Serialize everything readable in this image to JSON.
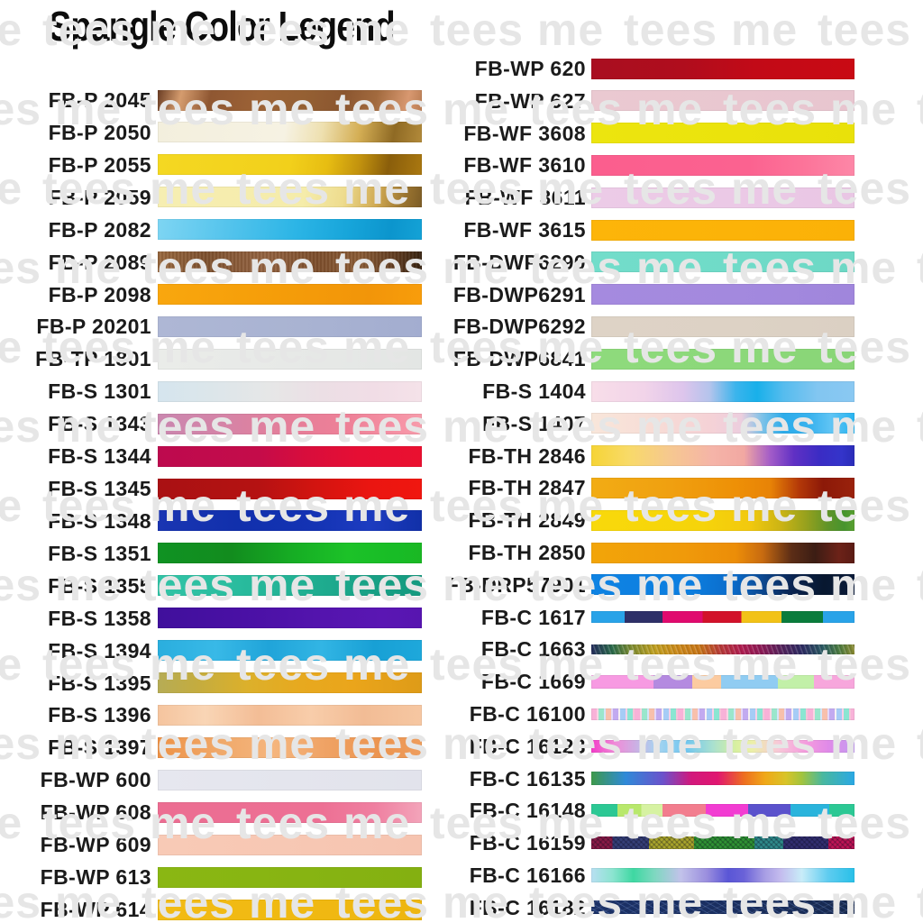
{
  "title": "Spangle Color Legend",
  "watermark": {
    "text": "tees me"
  },
  "legend": {
    "left": [
      {
        "code": "FB-P 2045",
        "swatch": "linear-gradient(102deg, #6a3d24 0%, #d59c6e 9%, #8f5732 20%, #9c6236 38%, #956033 55%, #8b5630 70%, #a26a3e 82%, #d89870 94%, #b97c52 100%)"
      },
      {
        "code": "FB-P 2050",
        "swatch": "linear-gradient(100deg, #f3efdd 0%, #f6f2e3 48%, #eee0b0 62%, #d4ae54 76%, #8f6a24 89%, #b28a3a 100%)"
      },
      {
        "code": "FB-P 2055",
        "swatch": "linear-gradient(100deg, #f4d822 0%, #f2d01b 50%, #e7bd12 64%, #c2920e 76%, #8a5e0b 87%, #aa7810 100%)"
      },
      {
        "code": "FB-P 2059",
        "swatch": "linear-gradient(100deg, #f6eeb2 0%, #f5ecaa 55%, #eedc8e 70%, #cfa851 83%, #9a7430 93%, #7c5c26 100%)"
      },
      {
        "code": "FB-P 2082",
        "swatch": "linear-gradient(97deg, #7ed5f3 0%, #52c3ec 28%, #2cb5e6 52%, #17a5da 72%, #0c95cd 88%, #14a2d6 100%)"
      },
      {
        "code": "FB-P 2089",
        "swatch": "repeating-linear-gradient(90deg, rgba(60,30,10,0.10) 0 2px, rgba(255,255,255,0.05) 2px 4px), linear-gradient(95deg, #9a6a40 0%, #7e5230 18%, #946442 40%, #7d4f2d 60%, #8a5c36 76%, #5e3b20 90%, #32200f 100%)"
      },
      {
        "code": "FB-P 2098",
        "swatch": "linear-gradient(95deg, #f9a70e 0%, #f59d09 45%, #f29509 80%, #f89d0b 100%)"
      },
      {
        "code": "FB-P 20201",
        "swatch": "linear-gradient(92deg, #aeb7d5 0%, #a9b3d2 55%, #a3add0 100%)"
      },
      {
        "code": "FB-TP 1801",
        "swatch": "linear-gradient(92deg, #eaece9 0%, #e7e9e7 50%, #e3e6e4 100%)"
      },
      {
        "code": "FB-S 1301",
        "swatch": "linear-gradient(90deg, #d5e5ee 0%, #dde6ea 22%, #e6e7e7 42%, #ecdfe5 62%, #f1dde6 82%, #f5e2e9 100%)"
      },
      {
        "code": "FB-S 1343",
        "swatch": "linear-gradient(90deg, #ca87af 0%, #d584a7 25%, #e57e99 50%, #ee8097 72%, #f591a4 90%, #f79cab 100%)"
      },
      {
        "code": "FB-S 1344",
        "swatch": "linear-gradient(90deg, #bd0a4e 0%, #c40c4a 38%, #d80d3c 56%, #e60e34 76%, #ea1030 100%)"
      },
      {
        "code": "FB-S 1345",
        "swatch": "linear-gradient(90deg, #a91113 0%, #b51212 38%, #d31410 60%, #ea1511 80%, #f01710 100%)"
      },
      {
        "code": "FB-S 1348",
        "swatch": "linear-gradient(90deg, #1a35b2 0%, #1130ac 30%, #1433b4 60%, #1d3cc0 80%, #1130a8 100%)"
      },
      {
        "code": "FB-S 1351",
        "swatch": "linear-gradient(90deg, #109223 0%, #128c1e 28%, #16ae24 52%, #1cc228 72%, #18bc26 90%, #1ab824 100%)"
      },
      {
        "code": "FB-S 1355",
        "swatch": "linear-gradient(90deg, #32c3a6 0%, #2abd9f 28%, #20ae91 58%, #18a085 82%, #159a7f 100%)"
      },
      {
        "code": "FB-S 1358",
        "swatch": "linear-gradient(90deg, #40109c 0%, #4910a4 30%, #5314ad 60%, #5a16b3 85%, #5715b0 100%)"
      },
      {
        "code": "FB-S 1394",
        "swatch": "linear-gradient(90deg, #2aaede 0%, #38b9e7 22%, #20a4d9 42%, #32b5e4 62%, #18a0d5 82%, #1ea8db 100%)"
      },
      {
        "code": "FB-S 1395",
        "swatch": "linear-gradient(90deg, #b6ac56 0%, #c3ac40 14%, #dcb02b 34%, #e7a91f 54%, #eaa51b 74%, #de9b18 100%)"
      },
      {
        "code": "FB-S 1396",
        "swatch": "linear-gradient(90deg, #f5c49e 0%, #f9d5b5 18%, #f3bd96 38%, #f8cdaa 58%, #f2bc95 78%, #f6c7a2 100%)"
      },
      {
        "code": "FB-S 1397",
        "swatch": "linear-gradient(90deg, #ee9246 0%, #f0a96a 24%, #f5b57d 44%, #efa264 64%, #ec944f 84%, #ee9d5d 100%)"
      },
      {
        "code": "FB-WP 600",
        "swatch": "linear-gradient(90deg, #e6e7ef 0%, #e4e5ed 50%, #e2e3ec 100%)"
      },
      {
        "code": "FB-WP 608",
        "swatch": "linear-gradient(90deg, #ec6d92 0%, #ed7094 62%, #ef7fa0 82%, #f3a4ba 100%)"
      },
      {
        "code": "FB-WP 609",
        "swatch": "linear-gradient(90deg, #f8cab6 0%, #f7c7b3 60%, #f6c4b0 100%)"
      },
      {
        "code": "FB-WP 613",
        "swatch": "linear-gradient(90deg, #8ab713 0%, #87b412 55%, #84b011 100%)"
      },
      {
        "code": "FB-WP 614",
        "swatch": "linear-gradient(90deg, #f2bb14 0%, #f0b912 55%, #eeb610 100%)"
      }
    ],
    "right": [
      {
        "code": "FB-WP 620",
        "swatch": "linear-gradient(90deg, #a90e20 0%, #b00d1d 35%, #c20a17 62%, #c90a14 100%)"
      },
      {
        "code": "FB-WP 627",
        "swatch": "linear-gradient(90deg, #eac9d1 0%, #e9c7d0 55%, #e8c5cf 100%)"
      },
      {
        "code": "FB-WF 3608",
        "swatch": "linear-gradient(90deg, #ece50f 0%, #ebe30c 55%, #e9e10a 100%)"
      },
      {
        "code": "FB-WF 3610",
        "swatch": "linear-gradient(90deg, #fb5e8e 0%, #fb6290 60%, #fc7399 80%, #fd87a7 100%)"
      },
      {
        "code": "FB-WF 3611",
        "swatch": "linear-gradient(90deg, #eccbe7 0%, #ebc9e6 55%, #e9c6e4 100%)"
      },
      {
        "code": "FB-WF 3615",
        "swatch": "linear-gradient(90deg, #fdb509 0%, #fcb308 55%, #fbb107 100%)"
      },
      {
        "code": "FB-DWP6290",
        "swatch": "linear-gradient(90deg, #72ddca 0%, #70dbc8 55%, #6dd8c5 100%)"
      },
      {
        "code": "FB-DWP6291",
        "swatch": "linear-gradient(90deg, #a58adf 0%, #a389de 55%, #a086dc 100%)"
      },
      {
        "code": "FB-DWP6292",
        "swatch": "linear-gradient(90deg, #ded3c6 0%, #ddd2c5 55%, #dbd0c3 100%)"
      },
      {
        "code": "FB-DWP6841",
        "swatch": "linear-gradient(90deg, #8eda7c 0%, #8cd87a 55%, #89d577 100%)"
      },
      {
        "code": "FB-S 1404",
        "swatch": "linear-gradient(90deg, #f8dee9 0%, #f2d4e9 20%, #ddc5ec 35%, #b4c4ec 45%, #3ab4ec 55%, #18b0ea 63%, #55bcee 73%, #82c6f1 86%, #8ac8f2 100%)"
      },
      {
        "code": "FB-S 1407",
        "swatch": "linear-gradient(90deg, #f8e6da 0%, #f7dcd6 25%, #f5d2d6 45%, #eccede 57%, #7cc2e8 65%, #2cacea 73%, #38b2ee 83%, #60c4f4 91%, #28b4f0 100%)"
      },
      {
        "code": "FB-TH 2846",
        "swatch": "linear-gradient(90deg, #f6d435 0%, #f8da68 14%, #f6c890 30%, #f5b4a8 46%, #f2a8a2 58%, #a35cc8 68%, #6030c4 77%, #3a2cc4 87%, #3434ca 95%, #2a2cb8 100%)"
      },
      {
        "code": "FB-TH 2847",
        "swatch": "linear-gradient(90deg, #f2ac14 0%, #f0a010 30%, #ee9006 55%, #e88306 68%, #b33808 79%, #8c1908 88%, #9a220c 100%)"
      },
      {
        "code": "FB-TH 2849",
        "swatch": "linear-gradient(90deg, #f8d90b 0%, #f6d40a 42%, #f2c90e 60%, #ccb414 72%, #94a01e 82%, #5f9428 90%, #47942e 96%, #58a030 100%)"
      },
      {
        "code": "FB-TH 2850",
        "swatch": "linear-gradient(90deg, #f2a509 0%, #f09a0a 35%, #ec8d08 55%, #c86b10 65%, #5c2d16 76%, #3c1d14 85%, #6c2218 94%, #5a1b14 100%)"
      },
      {
        "code": "FB-DRP57901",
        "swatch": "linear-gradient(95deg, #0e83e3 0%, #0d7edf 38%, #0b6bc9 54%, #0c4b95 64%, #0a2451 76%, #081830 88%, #0b1c3a 100%)"
      },
      {
        "code": "FB-C 1617",
        "thin": 13,
        "swatch": "linear-gradient(90deg, #29a3e8 0 12.7%, #2e3068 12.7% 27.1%, #e00a6e 27.1% 42.3%, #d2122a 42.3% 57%, #f2c217 57% 72.3%, #0a7c3c 72.3% 88%, #29a3e8 88% 100%)"
      },
      {
        "code": "FB-C 1663",
        "thin": 11,
        "swatch": "repeating-linear-gradient(70deg, rgba(255,255,255,0.18) 0 1px, rgba(0,0,0,0.10) 2px 3px, transparent 3px 5px), linear-gradient(90deg, #232c5c 0%, #2a6a4a 8%, #7a8a30 15%, #c0a020 24%, #cc8818 33%, #c87616 41%, #b83a38 49%, #b01c50 57%, #8a1a56 65%, #50225c 73%, #2c2a62 80%, #2a5a62 88%, #4a7a40 94%, #8a8a30 100%)"
      },
      {
        "code": "FB-C 1669",
        "thin": 15,
        "swatch": "linear-gradient(90deg, #f79ae2 0 23.6%, #b48ae0 23.6% 38.3%, #fccba0 38.3% 49.3%, #90ccf2 49.3% 70.9%, #c2f0a8 70.9% 84.6%, #f7a6dc 84.6% 100%)"
      },
      {
        "code": "FB-C 16100",
        "thin": 13,
        "swatch": "repeating-linear-gradient(90deg, #f8b2d8 0 6px, #fcd4e4 6px 8px, #9ae6cc 8px 14px, #d2e6fa 14px 16px, #f8c0ac 16px 22px, #e4d8fa 22px 24px, #c2aaf0 24px 30px, #f6f0f4 30px 32px, #a6ccf6 32px 38px, #fcd0e8 38px 40px, #8ae6d2 40px 46px, #f4c4d8 46px 48px)"
      },
      {
        "code": "FB-C 16123",
        "thin": 14,
        "swatch": "linear-gradient(90deg, #f23cc8 0%, #f08cd8 9%, #a6d4f0 25%, #70c6f0 36%, #a8e0d0 46%, #d8f0a0 55%, #ecf0a8 61%, #f8c8d8 71%, #f49ade 82%, #e08ae8 90%, #c49cf0 100%)"
      },
      {
        "code": "FB-C 16135",
        "thin": 15,
        "swatch": "linear-gradient(90deg, #3e9a4a 0%, #2f8ad8 13%, #6a52cc 27%, #d2187c 38%, #e01670 48%, #ee6e20 58%, #f0a818 66%, #d8c428 74%, #a2c43e 80%, #48b8a0 88%, #2aa8e4 100%)"
      },
      {
        "code": "FB-C 16148",
        "thin": 14,
        "swatch": "linear-gradient(90deg, #2cc894 0 10%, #b8e86c 10% 19%, #d6f2a2 19% 27%, #f27d8e 27% 43.5%, #f23cd2 43.5% 59.6%, #5b52cc 59.6% 75.7%, #2ab4dc 75.7% 90.4%, #2cc894 90.4% 100%)"
      },
      {
        "code": "FB-C 16159",
        "thin": 14,
        "swatch": "repeating-linear-gradient(45deg, rgba(10,10,30,0.28) 0 1.5px, transparent 1.5px 4px), repeating-linear-gradient(-45deg, rgba(10,10,30,0.22) 0 1.5px, transparent 1.5px 4px), linear-gradient(90deg, #8a1a46 0 8%, #353f78 8% 22%, #aaa62a 22% 39%, #2f9433 39% 62%, #2e8a8a 62% 73%, #322e70 73% 90%, #c01355 90% 100%)"
      },
      {
        "code": "FB-C 16166",
        "thin": 16,
        "swatch": "linear-gradient(90deg, #b8dff2 0%, #8ce4d0 8%, #3ed8a2 16%, #7ed8c0 24%, #c2c2ea 34%, #9a8ede 44%, #5a56d6 52%, #6a62d8 58%, #a89ee4 66%, #c4bcee 72%, #c8ecf8 80%, #5eccf0 90%, #28c0e8 100%)"
      },
      {
        "code": "FB-C 16182",
        "thin": 15,
        "swatch": "repeating-linear-gradient(30deg, rgba(140,180,255,0.22) 0 1px, transparent 1px 5px), repeating-linear-gradient(-25deg, rgba(255,255,255,0.10) 0 1px, transparent 1px 7px), linear-gradient(90deg, #1b3166 0%, #1a2f61 45%, #17294f 100%)"
      }
    ]
  }
}
